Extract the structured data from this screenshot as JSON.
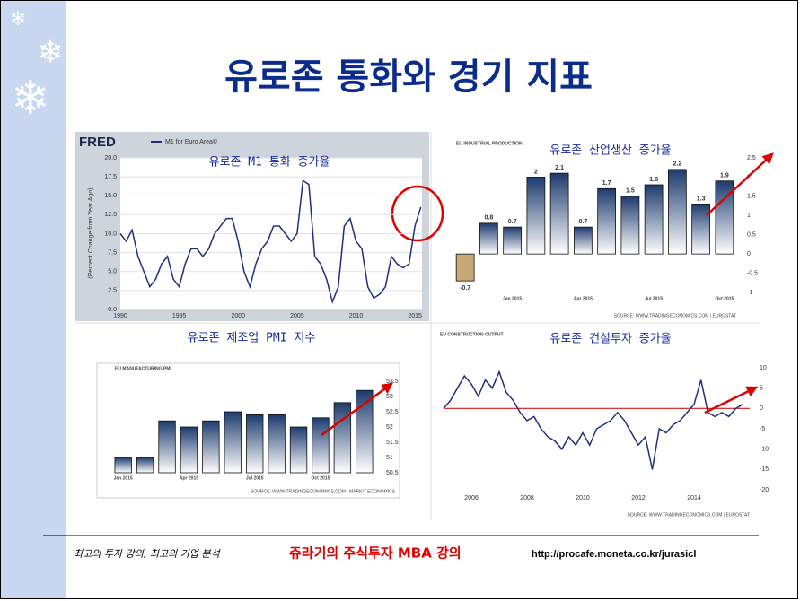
{
  "slide": {
    "title": "유로존 통화와 경기 지표",
    "footer": {
      "tagline": "최고의 투자 강의, 최고의 기업 분석",
      "brand": "쥬라기의 주식투자 MBA 강의",
      "url": "http://procafe.moneta.co.kr/jurasicl"
    }
  },
  "chart_data": [
    {
      "type": "line",
      "title": "유로존 M1 통화 증가율",
      "logo": "FRED",
      "y_label": "(Percent Change from Year Ago)",
      "x": [
        1990,
        1990.5,
        1991,
        1991.5,
        1992,
        1992.5,
        1993,
        1993.5,
        1994,
        1994.5,
        1995,
        1995.5,
        1996,
        1996.5,
        1997,
        1997.5,
        1998,
        1998.5,
        1999,
        1999.5,
        2000,
        2000.5,
        2001,
        2001.5,
        2002,
        2002.5,
        2003,
        2003.5,
        2004,
        2004.5,
        2005,
        2005.5,
        2006,
        2006.5,
        2007,
        2007.5,
        2008,
        2008.5,
        2009,
        2009.5,
        2010,
        2010.5,
        2011,
        2011.5,
        2012,
        2012.5,
        2013,
        2013.5,
        2014,
        2014.5,
        2015,
        2015.5
      ],
      "series": [
        {
          "name": "M1 for Euro Area©",
          "color": "#1f2f7a",
          "values": [
            10,
            9,
            10.5,
            7,
            5,
            3,
            4,
            6,
            7,
            4,
            3,
            6,
            8,
            8,
            7,
            8,
            10,
            11,
            12,
            12,
            9,
            5,
            3,
            6,
            8,
            9,
            11,
            11,
            10,
            9,
            10,
            17,
            16.5,
            7,
            6,
            4,
            1,
            3,
            11,
            12,
            9,
            8,
            3,
            1.5,
            2,
            3,
            7,
            6,
            5.5,
            6,
            11,
            13.5
          ]
        }
      ],
      "xlim": [
        1990,
        2015.6
      ],
      "xticks": [
        1990,
        1995,
        2000,
        2005,
        2010,
        2015
      ],
      "ylim": [
        0,
        20
      ],
      "yticks": [
        {
          "value": 0,
          "label": "0.0"
        },
        {
          "value": 2.5,
          "label": "2.5"
        },
        {
          "value": 5,
          "label": "5.0"
        },
        {
          "value": 7.5,
          "label": "7.5"
        },
        {
          "value": 10,
          "label": "10.0"
        },
        {
          "value": 12.5,
          "label": "12.5"
        },
        {
          "value": 15,
          "label": "15.0"
        },
        {
          "value": 17.5,
          "label": "17.5"
        },
        {
          "value": 20,
          "label": "20.0"
        }
      ],
      "grid": true
    },
    {
      "type": "bar",
      "title": "유로존 산업생산 증가율",
      "heading": "EU INDUSTRIAL PRODUCTION",
      "source": "SOURCE: WWW.TRADINGECONOMICS.COM | EUROSTAT",
      "categories": [
        null,
        null,
        "Jan 2015",
        null,
        null,
        "Apr 2015",
        null,
        null,
        "Jul 2015",
        null,
        null,
        "Oct 2015"
      ],
      "values": [
        -0.7,
        0.8,
        0.7,
        2,
        2.1,
        0.7,
        1.7,
        1.5,
        1.8,
        2.2,
        1.3,
        1.9
      ],
      "color": "#1d3b6e",
      "negative_color": "#c9a877",
      "labels": true,
      "ylim": [
        -1,
        2.5
      ],
      "yticks": [
        -1,
        -0.5,
        0,
        0.5,
        1,
        1.5,
        2,
        2.5
      ]
    },
    {
      "type": "bar",
      "title": "유로존 제조업 PMI 지수",
      "heading": "EU MANUFACTURING PMI",
      "source": "SOURCE: WWW.TRADINGECONOMICS.COM | MARKIT ECONOMICS",
      "categories": [
        "Jan 2015",
        null,
        null,
        "Apr 2015",
        null,
        null,
        "Jul 2015",
        null,
        null,
        "Oct 2015",
        null,
        null
      ],
      "values": [
        51,
        51,
        52.2,
        52,
        52.2,
        52.5,
        52.4,
        52.4,
        52,
        52.3,
        52.8,
        53.2
      ],
      "color": "#1d3b6e",
      "labels": false,
      "ylim": [
        50.5,
        53.5
      ],
      "yticks": [
        50.5,
        51,
        51.5,
        52,
        52.5,
        53,
        53.5
      ]
    },
    {
      "type": "line",
      "title": "유로존 건설투자 증가율",
      "heading": "EU CONSTRUCTION OUTPUT",
      "source": "SOURCE: WWW.TRADINGECONOMICS.COM | EUROSTAT",
      "x": [
        2005,
        2005.25,
        2005.5,
        2005.75,
        2006,
        2006.25,
        2006.5,
        2006.75,
        2007,
        2007.25,
        2007.5,
        2007.75,
        2008,
        2008.25,
        2008.5,
        2008.75,
        2009,
        2009.25,
        2009.5,
        2009.75,
        2010,
        2010.25,
        2010.5,
        2010.75,
        2011,
        2011.25,
        2011.5,
        2011.75,
        2012,
        2012.25,
        2012.5,
        2012.75,
        2013,
        2013.25,
        2013.5,
        2013.75,
        2014,
        2014.25,
        2014.5,
        2014.75,
        2015,
        2015.25,
        2015.5,
        2015.75
      ],
      "values": [
        0,
        2,
        5,
        8,
        6,
        3,
        7,
        5,
        9,
        4,
        2,
        -1,
        -3,
        -2,
        -5,
        -7,
        -8,
        -10,
        -7,
        -9,
        -6,
        -9,
        -5,
        -4,
        -3,
        -1,
        -3,
        -6,
        -9,
        -7,
        -15,
        -5,
        -6,
        -4,
        -3,
        -1,
        1,
        7,
        -1,
        -2,
        -1,
        -2,
        0,
        1
      ],
      "color": "#1f2f7a",
      "hline": 0,
      "hline_color": "#d81818",
      "xlim": [
        2005,
        2016
      ],
      "xticks": [
        2006,
        2008,
        2010,
        2012,
        2014
      ],
      "ylim": [
        -20,
        10
      ],
      "yticks": [
        -20,
        -15,
        -10,
        -5,
        0,
        5,
        10
      ]
    }
  ]
}
